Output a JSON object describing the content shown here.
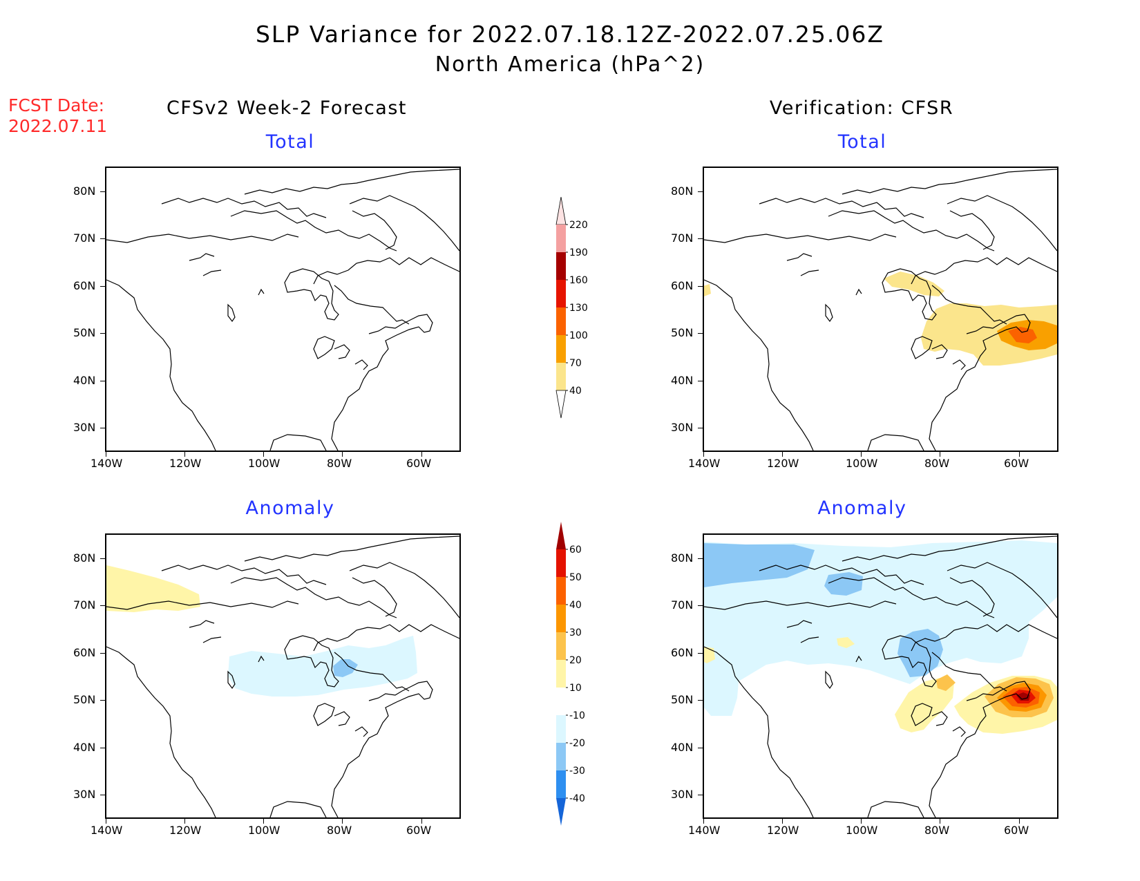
{
  "header": {
    "title": "SLP Variance for 2022.07.18.12Z-2022.07.25.06Z",
    "subtitle": "North America (hPa^2)"
  },
  "forecast_date": {
    "label": "FCST Date:",
    "value": "2022.07.11"
  },
  "columns": {
    "left_title": "CFSv2 Week-2 Forecast",
    "right_title": "Verification: CFSR"
  },
  "panels": {
    "total_label": "Total",
    "anomaly_label": "Anomaly"
  },
  "axes": {
    "lat_labels": [
      "80N",
      "70N",
      "60N",
      "50N",
      "40N",
      "30N"
    ],
    "lon_labels": [
      "140W",
      "120W",
      "100W",
      "80W",
      "60W"
    ]
  },
  "colorbars": {
    "total": {
      "levels": [
        "40",
        "70",
        "100",
        "130",
        "160",
        "190",
        "220"
      ],
      "colors": [
        "#fbe58c",
        "#f9a000",
        "#fb6200",
        "#e61400",
        "#a50000",
        "#f4a0a0",
        "#fde3e3"
      ]
    },
    "anomaly": {
      "levels": [
        "-40",
        "-30",
        "-20",
        "-10",
        "10",
        "20",
        "30",
        "40",
        "50",
        "60"
      ],
      "colors": [
        "#1565d8",
        "#2e8ff0",
        "#8cc8f5",
        "#dcf7ff",
        "#ffffff",
        "#fff5a8",
        "#fcc34c",
        "#fc9600",
        "#fc6100",
        "#e41200",
        "#a00000"
      ]
    }
  }
}
